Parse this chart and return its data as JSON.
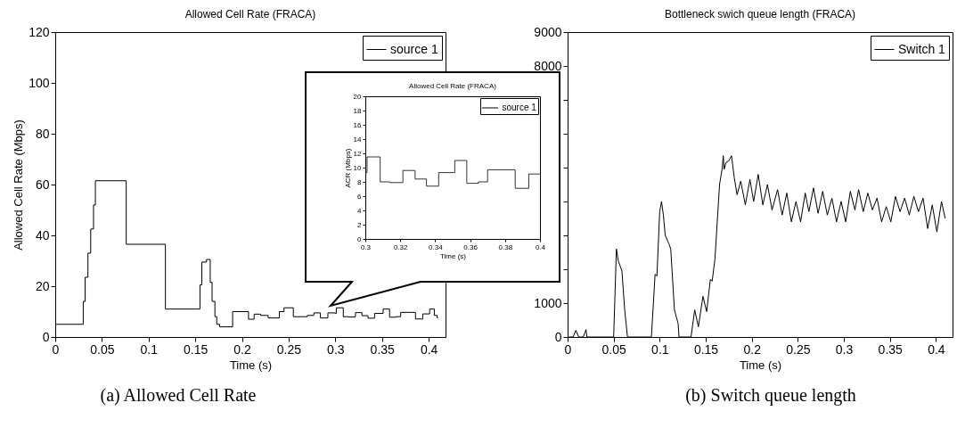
{
  "chart_data": [
    {
      "type": "step",
      "title": "Allowed Cell Rate (FRACA)",
      "xlabel": "Time (s)",
      "ylabel": "Allowed Cell Rate (Mbps)",
      "xlim": [
        0,
        0.418
      ],
      "xticks": [
        0,
        0.05,
        0.1,
        0.15,
        0.2,
        0.25,
        0.3,
        0.35,
        0.4
      ],
      "ylim": [
        0,
        120
      ],
      "yticks": [
        0,
        20,
        40,
        60,
        80,
        100,
        120
      ],
      "legend": "top right",
      "annotations": [
        "(a) Allowed Cell Rate"
      ],
      "x": [
        0,
        0.03,
        0.032,
        0.035,
        0.038,
        0.041,
        0.043,
        0.076,
        0.118,
        0.155,
        0.157,
        0.162,
        0.166,
        0.168,
        0.171,
        0.173,
        0.176,
        0.19,
        0.207,
        0.213,
        0.22,
        0.228,
        0.24,
        0.245,
        0.255,
        0.27,
        0.277,
        0.284,
        0.292,
        0.3,
        0.301,
        0.3085,
        0.314,
        0.3215,
        0.3285,
        0.335,
        0.342,
        0.3512,
        0.3581,
        0.3647,
        0.37,
        0.3858,
        0.3936,
        0.401,
        0.406,
        0.409,
        0.41
      ],
      "series": [
        {
          "name": "source 1",
          "color": "#000000",
          "values": [
            5,
            14,
            23.5,
            33,
            42.5,
            52,
            61.5,
            36.5,
            11,
            20.5,
            29.5,
            30.5,
            21.5,
            14,
            8,
            5,
            4,
            10,
            7,
            9,
            8.5,
            7.5,
            10,
            11.5,
            8,
            8.5,
            9.5,
            7.5,
            9.5,
            9.3,
            11.5,
            8,
            7.9,
            9.6,
            8.4,
            7.4,
            9.3,
            11,
            7.8,
            8,
            9.7,
            7.1,
            9.1,
            11,
            8.5,
            7.5,
            7.5
          ]
        }
      ]
    },
    {
      "type": "step",
      "title": "Allowed Cell Rate (FRACA)",
      "xlabel": "Time (s)",
      "ylabel": "ACR (Mbps)",
      "xlim": [
        0.3,
        0.4
      ],
      "xticks": [
        0.3,
        0.32,
        0.34,
        0.36,
        0.38,
        0.4
      ],
      "ylim": [
        0,
        20
      ],
      "yticks": [
        0,
        2,
        4,
        6,
        8,
        10,
        12,
        14,
        16,
        18,
        20
      ],
      "legend": "top right",
      "x": [
        0.3,
        0.301,
        0.3085,
        0.314,
        0.3215,
        0.3285,
        0.335,
        0.342,
        0.3512,
        0.3581,
        0.3647,
        0.37,
        0.3858,
        0.3936,
        0.4
      ],
      "series": [
        {
          "name": "source 1",
          "color": "#000000",
          "values": [
            9.3,
            11.5,
            8,
            7.9,
            9.6,
            8.4,
            7.4,
            9.3,
            11,
            7.8,
            8,
            9.7,
            7.1,
            9.1,
            9.1
          ]
        }
      ]
    },
    {
      "type": "line",
      "title": "Bottleneck swich queue length (FRACA)",
      "xlabel": "Time (s)",
      "xlim": [
        0,
        0.418
      ],
      "xticks": [
        0,
        0.05,
        0.1,
        0.15,
        0.2,
        0.25,
        0.3,
        0.35,
        0.4
      ],
      "ylim": [
        0,
        9000
      ],
      "yticks": [
        0,
        1000,
        {
          "value": 2000,
          "label": null
        },
        {
          "value": 3000,
          "label": null
        },
        {
          "value": 4000,
          "label": null
        },
        {
          "value": 5000,
          "label": null
        },
        {
          "value": 6000,
          "label": null
        },
        {
          "value": 7000,
          "label": null
        },
        8000,
        9000
      ],
      "legend": "top right",
      "annotations": [
        "(b) Switch queue length"
      ],
      "x": [
        0,
        0.006,
        0.009,
        0.012,
        0.017,
        0.02,
        0.021,
        0.05,
        0.053,
        0.055,
        0.059,
        0.062,
        0.065,
        0.091,
        0.095,
        0.097,
        0.1,
        0.102,
        0.104,
        0.106,
        0.11,
        0.112,
        0.116,
        0.12,
        0.121,
        0.134,
        0.138,
        0.142,
        0.147,
        0.151,
        0.155,
        0.157,
        0.16,
        0.165,
        0.168,
        0.169,
        0.17,
        0.172,
        0.175,
        0.178,
        0.181,
        0.184,
        0.188,
        0.193,
        0.198,
        0.202,
        0.207,
        0.212,
        0.217,
        0.222,
        0.228,
        0.233,
        0.238,
        0.243,
        0.248,
        0.253,
        0.258,
        0.262,
        0.267,
        0.272,
        0.277,
        0.282,
        0.287,
        0.292,
        0.297,
        0.302,
        0.307,
        0.312,
        0.316,
        0.321,
        0.326,
        0.331,
        0.336,
        0.341,
        0.346,
        0.351,
        0.356,
        0.361,
        0.366,
        0.371,
        0.376,
        0.381,
        0.386,
        0.391,
        0.396,
        0.401,
        0.406,
        0.41
      ],
      "series": [
        {
          "name": "Switch 1",
          "color": "#000000",
          "values": [
            0,
            0,
            200,
            0,
            0,
            220,
            0,
            0,
            2600,
            2250,
            1950,
            800,
            0,
            0,
            1850,
            1800,
            3700,
            4000,
            3600,
            3000,
            2750,
            2600,
            800,
            400,
            0,
            0,
            800,
            300,
            1200,
            750,
            1700,
            1650,
            2300,
            4500,
            5000,
            5350,
            4950,
            5150,
            5200,
            5350,
            4700,
            4200,
            4600,
            3900,
            4650,
            4000,
            4800,
            3900,
            4500,
            3750,
            4350,
            3600,
            4250,
            3400,
            4000,
            3400,
            4250,
            3700,
            4400,
            3650,
            4300,
            3600,
            4100,
            3400,
            4000,
            3400,
            4300,
            3750,
            4350,
            3700,
            4250,
            3750,
            4100,
            3400,
            3850,
            3400,
            4150,
            3700,
            4100,
            3600,
            4150,
            3700,
            4100,
            3200,
            3900,
            3100,
            4000,
            3500
          ]
        }
      ]
    }
  ]
}
